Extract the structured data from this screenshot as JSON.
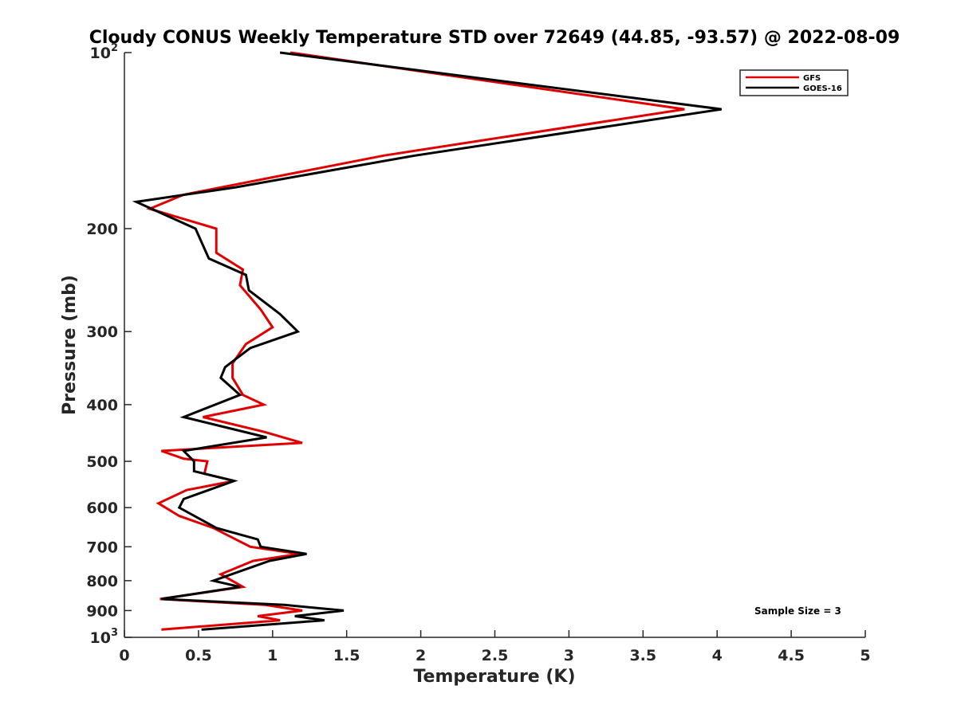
{
  "chart_data": {
    "type": "line",
    "title": "Cloudy CONUS Weekly Temperature STD over 72649 (44.85, -93.57) @ 2022-08-09",
    "xlabel": "Temperature (K)",
    "ylabel": "Pressure (mb)",
    "xlim": [
      0,
      5
    ],
    "ylim": [
      100,
      1000
    ],
    "y_scale": "log",
    "y_reversed": true,
    "x_ticks": [
      "0",
      "0.5",
      "1",
      "1.5",
      "2",
      "2.5",
      "3",
      "3.5",
      "4",
      "4.5",
      "5"
    ],
    "y_ticks": [
      {
        "value": 100,
        "base": "10",
        "exp": "2"
      },
      {
        "value": 200,
        "label": "200"
      },
      {
        "value": 300,
        "label": "300"
      },
      {
        "value": 400,
        "label": "400"
      },
      {
        "value": 500,
        "label": "500"
      },
      {
        "value": 600,
        "label": "600"
      },
      {
        "value": 700,
        "label": "700"
      },
      {
        "value": 800,
        "label": "800"
      },
      {
        "value": 900,
        "label": "900"
      },
      {
        "value": 1000,
        "base": "10",
        "exp": "3"
      }
    ],
    "grid": false,
    "legend": {
      "placement": "top-right"
    },
    "annotation": "Sample Size = 3",
    "series": [
      {
        "name": "GFS",
        "color": "#e00000",
        "points": [
          [
            1.12,
            100
          ],
          [
            3.78,
            125
          ],
          [
            1.75,
            150
          ],
          [
            0.4,
            175
          ],
          [
            0.17,
            185
          ],
          [
            0.62,
            200
          ],
          [
            0.62,
            220
          ],
          [
            0.8,
            235
          ],
          [
            0.78,
            250
          ],
          [
            0.92,
            275
          ],
          [
            1.0,
            295
          ],
          [
            0.82,
            315
          ],
          [
            0.73,
            340
          ],
          [
            0.73,
            360
          ],
          [
            0.8,
            385
          ],
          [
            0.94,
            400
          ],
          [
            0.53,
            420
          ],
          [
            0.94,
            445
          ],
          [
            1.2,
            465
          ],
          [
            0.25,
            480
          ],
          [
            0.4,
            495
          ],
          [
            0.56,
            500
          ],
          [
            0.54,
            525
          ],
          [
            0.74,
            540
          ],
          [
            0.42,
            560
          ],
          [
            0.23,
            590
          ],
          [
            0.37,
            620
          ],
          [
            0.6,
            650
          ],
          [
            0.85,
            700
          ],
          [
            1.18,
            720
          ],
          [
            0.87,
            740
          ],
          [
            0.65,
            780
          ],
          [
            0.8,
            820
          ],
          [
            0.24,
            860
          ],
          [
            0.95,
            880
          ],
          [
            1.2,
            900
          ],
          [
            0.9,
            920
          ],
          [
            1.05,
            935
          ],
          [
            0.25,
            970
          ]
        ]
      },
      {
        "name": "GOES-16",
        "color": "#000000",
        "points": [
          [
            1.05,
            100
          ],
          [
            4.03,
            125
          ],
          [
            1.96,
            150
          ],
          [
            0.75,
            170
          ],
          [
            0.08,
            180
          ],
          [
            0.48,
            200
          ],
          [
            0.57,
            225
          ],
          [
            0.82,
            240
          ],
          [
            0.84,
            255
          ],
          [
            1.05,
            280
          ],
          [
            1.17,
            300
          ],
          [
            0.85,
            320
          ],
          [
            0.68,
            345
          ],
          [
            0.65,
            360
          ],
          [
            0.78,
            385
          ],
          [
            0.4,
            420
          ],
          [
            0.96,
            455
          ],
          [
            0.4,
            480
          ],
          [
            0.47,
            500
          ],
          [
            0.47,
            520
          ],
          [
            0.74,
            540
          ],
          [
            0.4,
            580
          ],
          [
            0.37,
            600
          ],
          [
            0.62,
            650
          ],
          [
            0.9,
            680
          ],
          [
            0.92,
            700
          ],
          [
            1.23,
            720
          ],
          [
            0.98,
            740
          ],
          [
            0.6,
            800
          ],
          [
            0.78,
            820
          ],
          [
            0.25,
            860
          ],
          [
            1.08,
            880
          ],
          [
            1.48,
            900
          ],
          [
            1.15,
            920
          ],
          [
            1.35,
            935
          ],
          [
            0.52,
            970
          ]
        ]
      }
    ]
  }
}
